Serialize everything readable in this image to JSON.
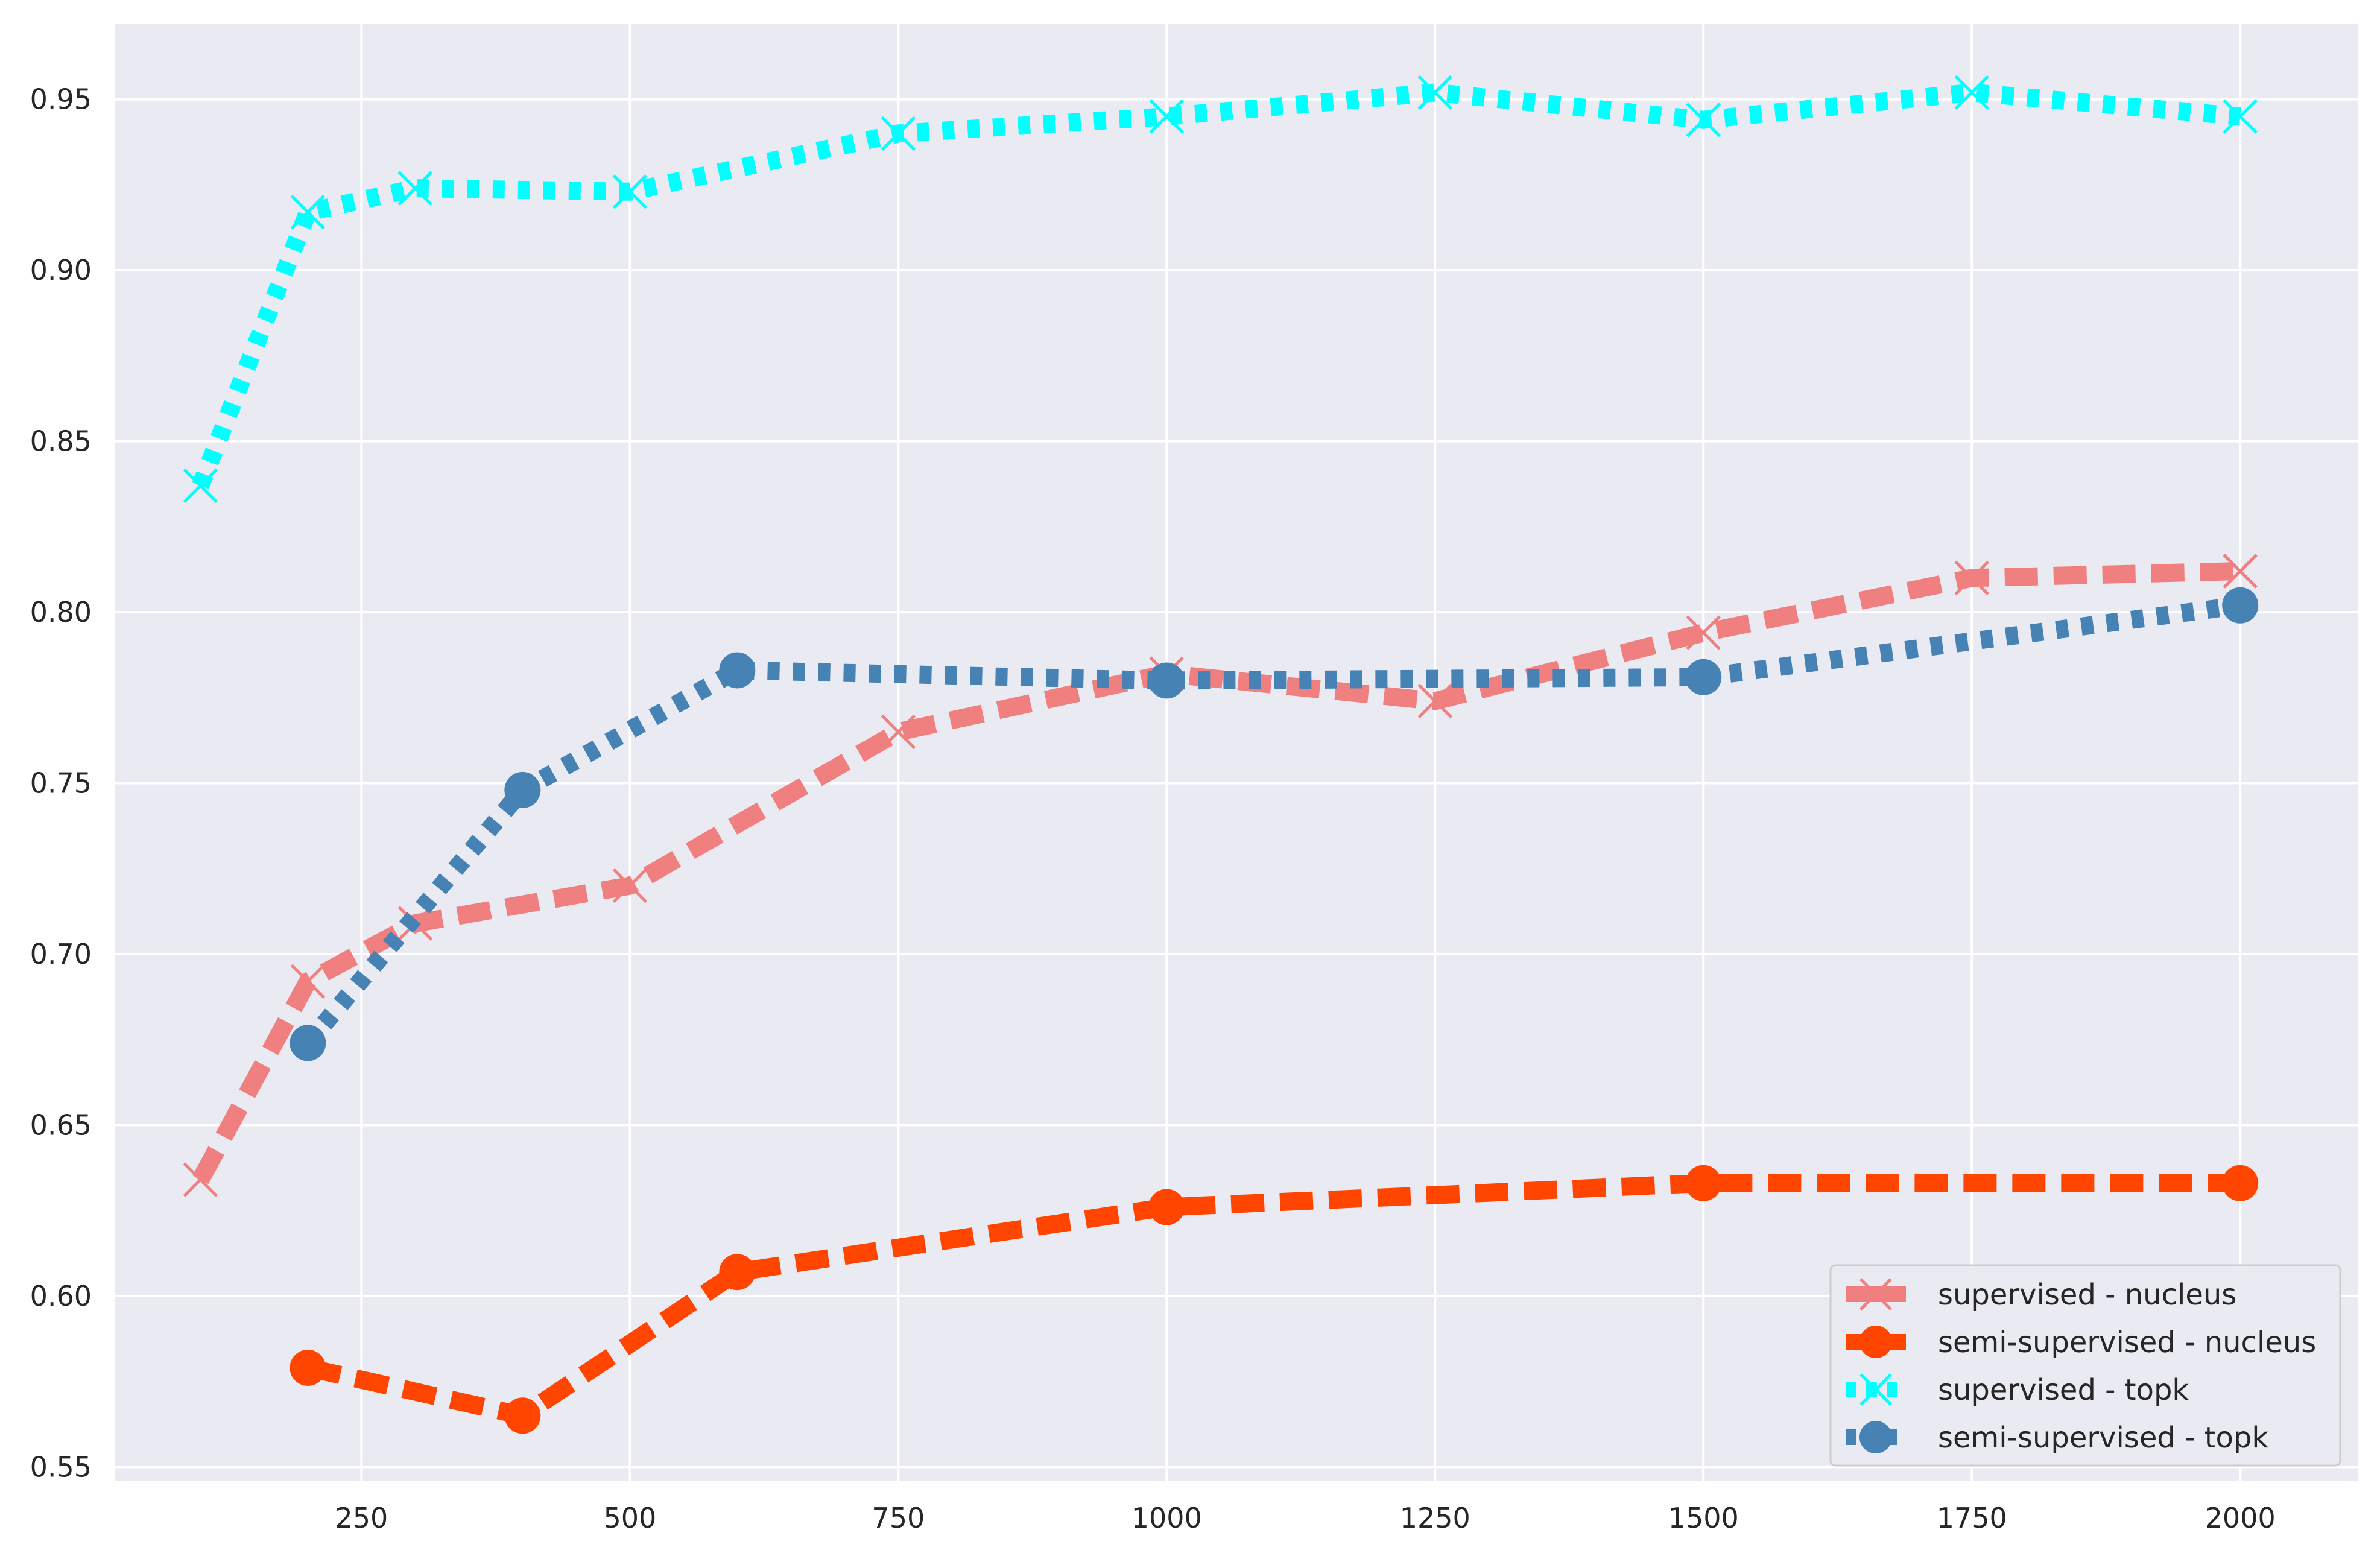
{
  "chart_data": {
    "type": "line",
    "title": "",
    "xlabel": "",
    "ylabel": "",
    "xlim": [
      20,
      2110
    ],
    "ylim": [
      0.546,
      0.972
    ],
    "xticks": [
      250,
      500,
      750,
      1000,
      1250,
      1500,
      1750,
      2000
    ],
    "yticks": [
      0.55,
      0.6,
      0.65,
      0.7,
      0.75,
      0.8,
      0.85,
      0.9,
      0.95
    ],
    "xtick_labels": [
      "250",
      "500",
      "750",
      "1000",
      "1250",
      "1500",
      "1750",
      "2000"
    ],
    "ytick_labels": [
      "0.55",
      "0.60",
      "0.65",
      "0.70",
      "0.75",
      "0.80",
      "0.85",
      "0.90",
      "0.95"
    ],
    "grid": true,
    "legend_position": "bottom-right",
    "series": [
      {
        "name": "supervised - nucleus",
        "color": "#f08080",
        "line_style": "dashed",
        "marker": "x",
        "x": [
          100,
          200,
          300,
          500,
          750,
          1000,
          1250,
          1500,
          1750,
          2000
        ],
        "y": [
          0.634,
          0.692,
          0.709,
          0.72,
          0.765,
          0.782,
          0.774,
          0.794,
          0.81,
          0.812
        ]
      },
      {
        "name": "semi-supervised - nucleus",
        "color": "#ff4500",
        "line_style": "dashed",
        "marker": "circle",
        "x": [
          200,
          400,
          600,
          1000,
          1500,
          2000
        ],
        "y": [
          0.579,
          0.565,
          0.607,
          0.626,
          0.633,
          0.633
        ]
      },
      {
        "name": "supervised - topk",
        "color": "#00ffff",
        "line_style": "dotted",
        "marker": "x",
        "x": [
          100,
          200,
          300,
          500,
          750,
          1000,
          1250,
          1500,
          1750,
          2000
        ],
        "y": [
          0.837,
          0.917,
          0.924,
          0.923,
          0.94,
          0.945,
          0.952,
          0.944,
          0.952,
          0.945
        ]
      },
      {
        "name": "semi-supervised - topk",
        "color": "#4682b4",
        "line_style": "dotted",
        "marker": "circle",
        "x": [
          200,
          400,
          600,
          1000,
          1500,
          2000
        ],
        "y": [
          0.674,
          0.748,
          0.783,
          0.78,
          0.781,
          0.802
        ]
      }
    ]
  }
}
